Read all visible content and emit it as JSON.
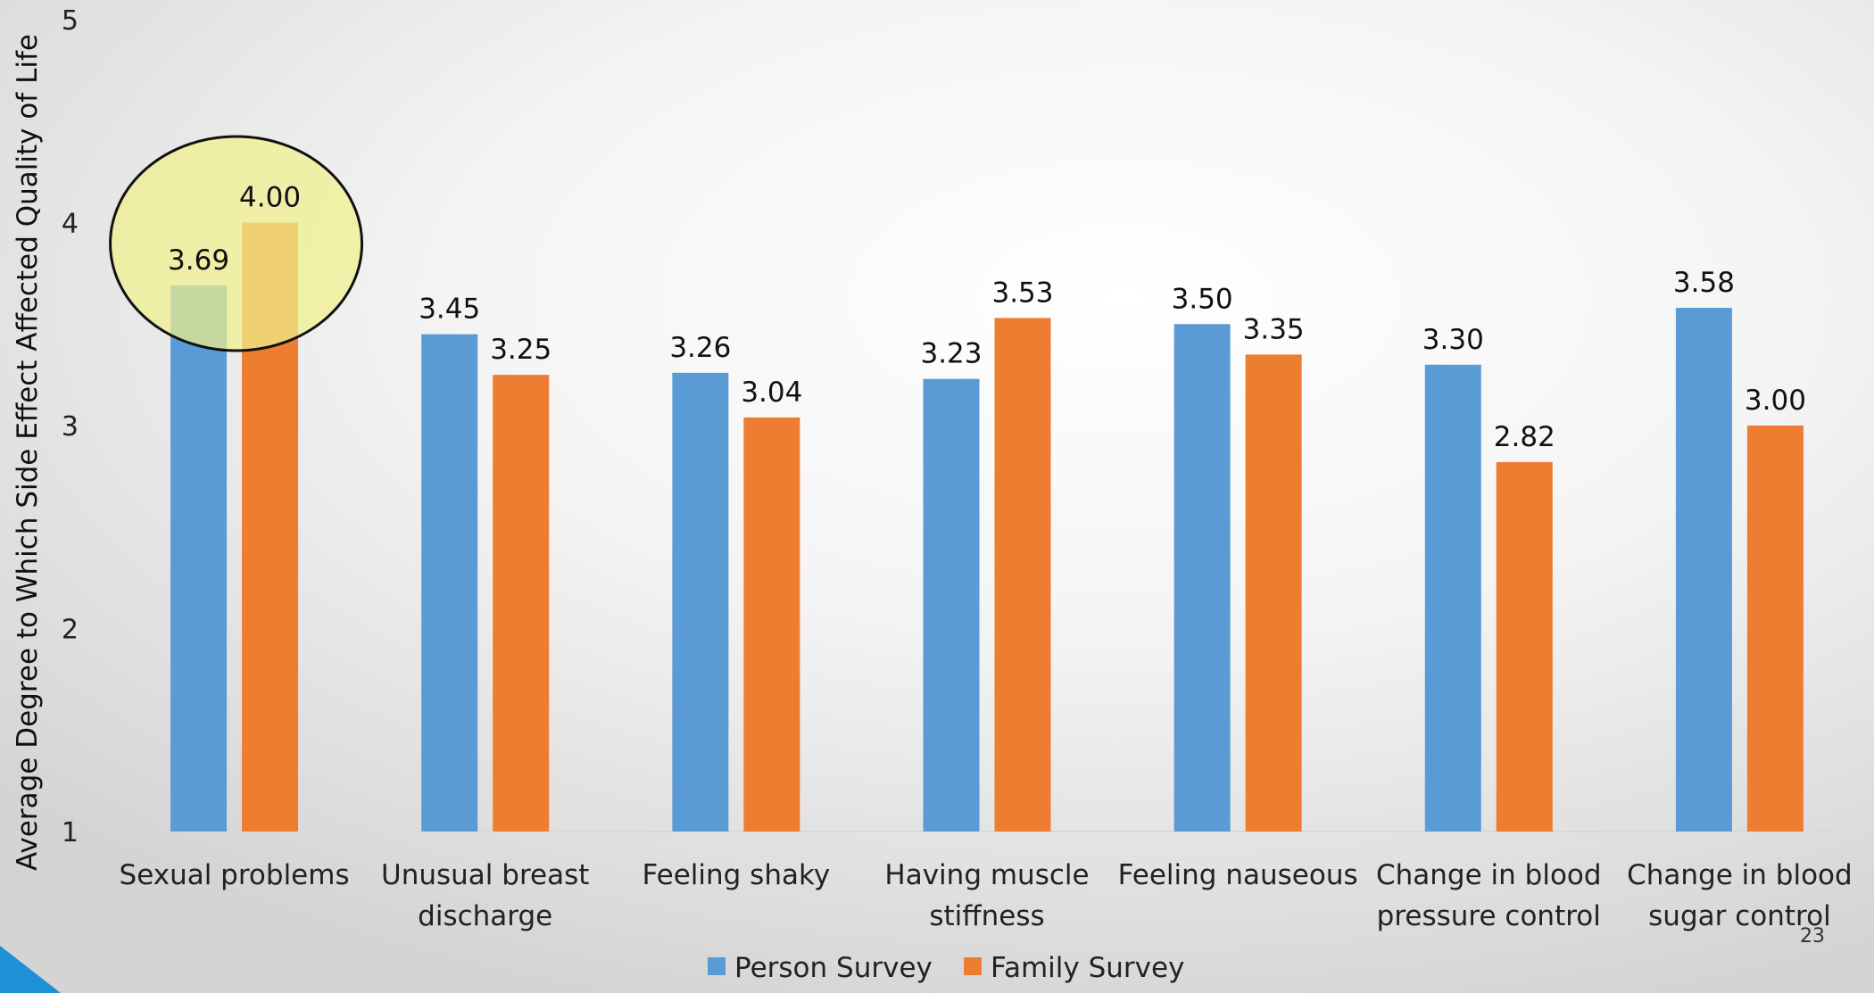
{
  "chart_data": {
    "type": "bar",
    "ylabel": "Average Degree to Which Side Effect Affected Quality of Life",
    "xlabel": "",
    "ylim": [
      1,
      5
    ],
    "yticks": [
      1,
      2,
      3,
      4,
      5
    ],
    "grid": false,
    "legend_position": "bottom",
    "categories": [
      [
        "Sexual problems"
      ],
      [
        "Unusual breast",
        "discharge"
      ],
      [
        "Feeling shaky"
      ],
      [
        "Having muscle",
        "stiffness"
      ],
      [
        "Feeling nauseous"
      ],
      [
        "Change in blood",
        "pressure control"
      ],
      [
        "Change in blood",
        "sugar control"
      ]
    ],
    "series": [
      {
        "name": "Person Survey",
        "color": "#5B9BD5",
        "values": [
          3.69,
          3.45,
          3.26,
          3.23,
          3.5,
          3.3,
          3.58
        ],
        "labels": [
          "3.69",
          "3.45",
          "3.26",
          "3.23",
          "3.50",
          "3.30",
          "3.58"
        ]
      },
      {
        "name": "Family Survey",
        "color": "#ED7D31",
        "values": [
          4.0,
          3.25,
          3.04,
          3.53,
          3.35,
          2.82,
          3.0
        ],
        "labels": [
          "4.00",
          "3.25",
          "3.04",
          "3.53",
          "3.35",
          "2.82",
          "3.00"
        ]
      }
    ],
    "highlight": {
      "category_index": 0,
      "fill": "#f0f08c",
      "stroke": "#111111"
    }
  },
  "slide_number": "23",
  "accent_color": "#1f8fd6"
}
